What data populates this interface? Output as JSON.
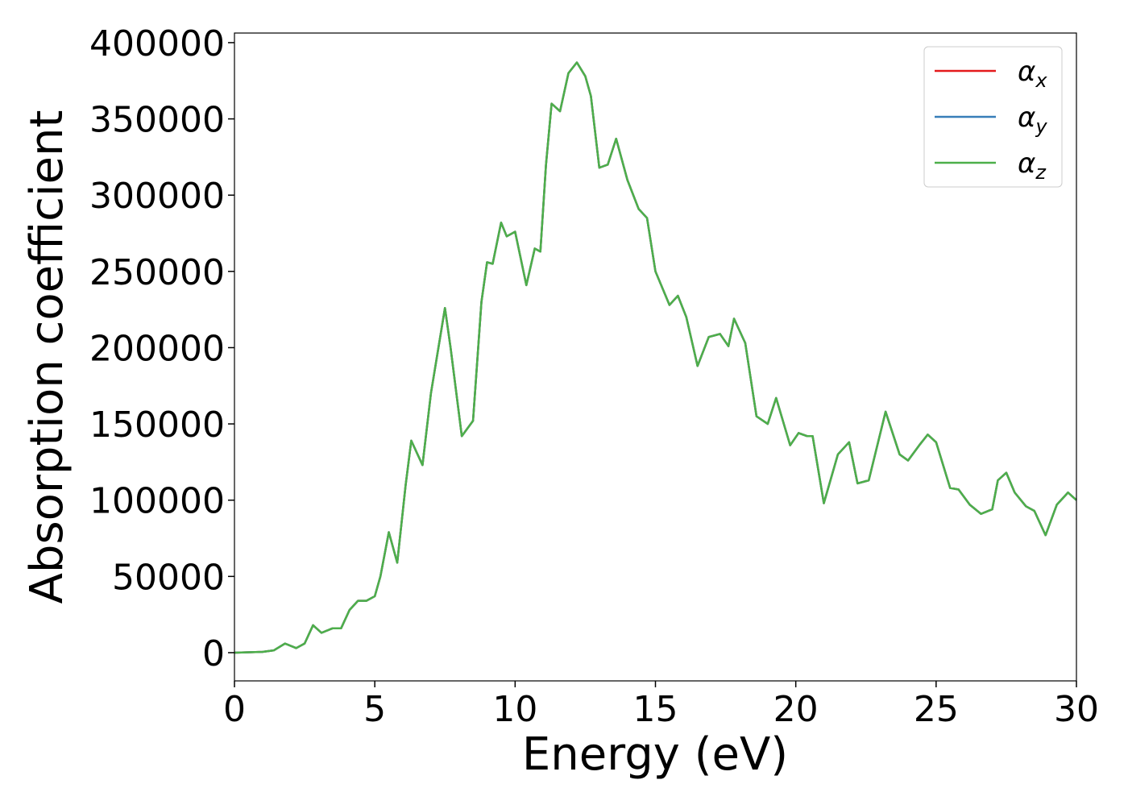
{
  "chart_data": {
    "type": "line",
    "xlabel": "Energy (eV)",
    "ylabel": "Absorption coefficient",
    "x": [
      0,
      1,
      1.4,
      1.8,
      2.2,
      2.5,
      2.8,
      3.1,
      3.5,
      3.8,
      4.1,
      4.4,
      4.7,
      5.0,
      5.2,
      5.5,
      5.8,
      6.1,
      6.3,
      6.7,
      7.0,
      7.5,
      7.7,
      8.1,
      8.5,
      8.8,
      9.0,
      9.2,
      9.5,
      9.7,
      10.0,
      10.4,
      10.7,
      10.9,
      11.1,
      11.3,
      11.6,
      11.9,
      12.2,
      12.5,
      12.7,
      13.0,
      13.3,
      13.6,
      14.0,
      14.4,
      14.7,
      15.0,
      15.5,
      15.8,
      16.1,
      16.5,
      16.9,
      17.3,
      17.6,
      17.8,
      18.2,
      18.6,
      19.0,
      19.3,
      19.8,
      20.1,
      20.4,
      20.6,
      21.0,
      21.5,
      21.9,
      22.2,
      22.6,
      23.2,
      23.7,
      24.0,
      24.4,
      24.7,
      25.0,
      25.5,
      25.8,
      26.2,
      26.6,
      27.0,
      27.2,
      27.5,
      27.8,
      28.2,
      28.5,
      28.9,
      29.3,
      29.7,
      30.0
    ],
    "series": [
      {
        "name": "αx",
        "color": "#e41a1c",
        "values": [
          0,
          500,
          1500,
          6000,
          3000,
          6000,
          18000,
          13000,
          16000,
          16000,
          28000,
          34000,
          34000,
          37000,
          50000,
          79000,
          59000,
          110000,
          139000,
          123000,
          170000,
          226000,
          200000,
          142000,
          152000,
          230000,
          256000,
          255000,
          282000,
          273000,
          276000,
          241000,
          265000,
          263000,
          320000,
          360000,
          355000,
          380000,
          387000,
          378000,
          365000,
          318000,
          320000,
          337000,
          310000,
          291000,
          285000,
          250000,
          228000,
          234000,
          220000,
          188000,
          207000,
          209000,
          201000,
          219000,
          203000,
          155000,
          150000,
          167000,
          136000,
          144000,
          142000,
          142000,
          98000,
          130000,
          138000,
          111000,
          113000,
          158000,
          130000,
          126000,
          136000,
          143000,
          138000,
          108000,
          107000,
          97000,
          91000,
          94000,
          113000,
          118000,
          105000,
          96000,
          93000,
          77000,
          97000,
          105000,
          100000
        ]
      },
      {
        "name": "αy",
        "color": "#377eb8",
        "values": [
          0,
          500,
          1500,
          6000,
          3000,
          6000,
          18000,
          13000,
          16000,
          16000,
          28000,
          34000,
          34000,
          37000,
          50000,
          79000,
          59000,
          110000,
          139000,
          123000,
          170000,
          226000,
          200000,
          142000,
          152000,
          230000,
          256000,
          255000,
          282000,
          273000,
          276000,
          241000,
          265000,
          263000,
          320000,
          360000,
          355000,
          380000,
          387000,
          378000,
          365000,
          318000,
          320000,
          337000,
          310000,
          291000,
          285000,
          250000,
          228000,
          234000,
          220000,
          188000,
          207000,
          209000,
          201000,
          219000,
          203000,
          155000,
          150000,
          167000,
          136000,
          144000,
          142000,
          142000,
          98000,
          130000,
          138000,
          111000,
          113000,
          158000,
          130000,
          126000,
          136000,
          143000,
          138000,
          108000,
          107000,
          97000,
          91000,
          94000,
          113000,
          118000,
          105000,
          96000,
          93000,
          77000,
          97000,
          105000,
          100000
        ]
      },
      {
        "name": "αz",
        "color": "#4daf4a",
        "values": [
          0,
          500,
          1500,
          6000,
          3000,
          6000,
          18000,
          13000,
          16000,
          16000,
          28000,
          34000,
          34000,
          37000,
          50000,
          79000,
          59000,
          110000,
          139000,
          123000,
          170000,
          226000,
          200000,
          142000,
          152000,
          230000,
          256000,
          255000,
          282000,
          273000,
          276000,
          241000,
          265000,
          263000,
          320000,
          360000,
          355000,
          380000,
          387000,
          378000,
          365000,
          318000,
          320000,
          337000,
          310000,
          291000,
          285000,
          250000,
          228000,
          234000,
          220000,
          188000,
          207000,
          209000,
          201000,
          219000,
          203000,
          155000,
          150000,
          167000,
          136000,
          144000,
          142000,
          142000,
          98000,
          130000,
          138000,
          111000,
          113000,
          158000,
          130000,
          126000,
          136000,
          143000,
          138000,
          108000,
          107000,
          97000,
          91000,
          94000,
          113000,
          118000,
          105000,
          96000,
          93000,
          77000,
          97000,
          105000,
          100000
        ]
      }
    ],
    "xlim": [
      0,
      30
    ],
    "xticks": [
      0,
      5,
      10,
      15,
      20,
      25,
      30
    ],
    "ylim": [
      -18500,
      406300
    ],
    "yticks": [
      0,
      50000,
      100000,
      150000,
      200000,
      250000,
      300000,
      350000,
      400000
    ],
    "grid": false,
    "legend": "upper right"
  }
}
